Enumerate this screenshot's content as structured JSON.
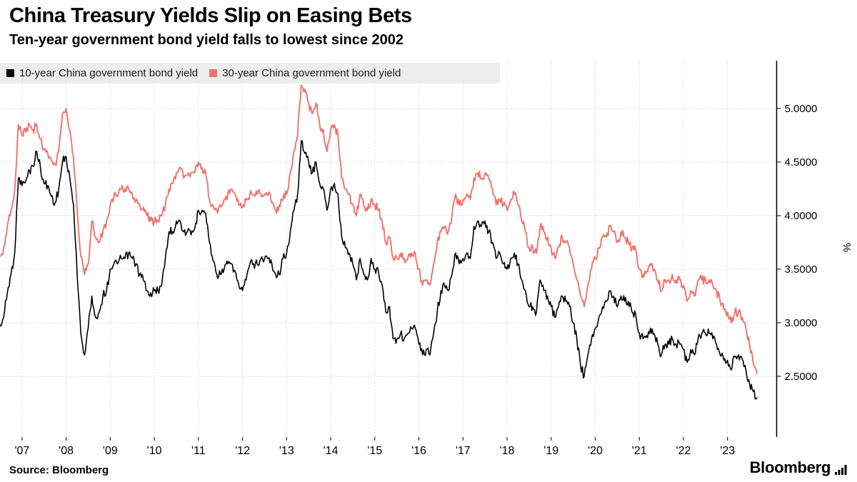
{
  "header": {
    "title": "China Treasury Yields Slip on Easing Bets",
    "subtitle": "Ten-year government bond yield falls to lowest since 2002"
  },
  "legend": {
    "items": [
      {
        "label": "10-year China government bond yield",
        "color": "#000000"
      },
      {
        "label": "30-year China government bond yield",
        "color": "#f0716b"
      }
    ]
  },
  "footer": {
    "source": "Source: Bloomberg",
    "brand": "Bloomberg"
  },
  "chart_data": {
    "type": "line",
    "title": "China Treasury Yields Slip on Easing Bets",
    "subtitle": "Ten-year government bond yield falls to lowest since 2002",
    "xlabel": "",
    "ylabel": "%",
    "grid": "dotted",
    "legend_position": "top-left",
    "y_axis_side": "right",
    "y_ticks": [
      2.5,
      3.0,
      3.5,
      4.0,
      4.5,
      5.0
    ],
    "y_tick_decimals": 4,
    "y_range_visible": [
      1.93,
      5.45
    ],
    "x_range": [
      2007.0,
      2024.25
    ],
    "x_tick_labels": [
      "'07",
      "'08",
      "'09",
      "'10",
      "'11",
      "'12",
      "'13",
      "'14",
      "'15",
      "'16",
      "'17",
      "'18",
      "'19",
      "'20",
      "'21",
      "'22",
      "'23"
    ],
    "x_tick_years": [
      2007.5,
      2008.5,
      2009.5,
      2010.5,
      2011.5,
      2012.5,
      2013.5,
      2014.5,
      2015.5,
      2016.5,
      2017.5,
      2018.5,
      2019.5,
      2020.5,
      2021.5,
      2022.5,
      2023.5
    ],
    "sample_interval": "monthly",
    "series_start": 2007.0,
    "points_per_year": 12,
    "gridline_color": "#c9c9c9",
    "series": [
      {
        "name": "10-year China government bond yield",
        "color": "#000000",
        "values": [
          2.98,
          3.05,
          3.28,
          3.45,
          3.65,
          4.35,
          4.28,
          4.32,
          4.42,
          4.46,
          4.6,
          4.45,
          4.3,
          4.28,
          4.18,
          4.12,
          4.25,
          4.5,
          4.55,
          4.35,
          4.1,
          3.45,
          2.9,
          2.7,
          2.95,
          3.25,
          3.05,
          3.1,
          3.25,
          3.3,
          3.5,
          3.55,
          3.55,
          3.6,
          3.6,
          3.65,
          3.6,
          3.55,
          3.45,
          3.4,
          3.3,
          3.28,
          3.3,
          3.3,
          3.35,
          3.6,
          3.85,
          3.85,
          3.95,
          3.95,
          3.85,
          3.85,
          3.82,
          3.88,
          4.05,
          4.05,
          4.02,
          3.75,
          3.58,
          3.45,
          3.45,
          3.5,
          3.55,
          3.55,
          3.48,
          3.35,
          3.3,
          3.4,
          3.55,
          3.55,
          3.55,
          3.6,
          3.6,
          3.6,
          3.55,
          3.45,
          3.45,
          3.6,
          3.65,
          3.85,
          4.05,
          4.2,
          4.7,
          4.58,
          4.5,
          4.4,
          4.5,
          4.3,
          4.25,
          4.05,
          4.25,
          4.3,
          4.2,
          3.8,
          3.7,
          3.65,
          3.55,
          3.4,
          3.6,
          3.45,
          3.4,
          3.6,
          3.5,
          3.48,
          3.35,
          3.1,
          3.15,
          2.85,
          2.85,
          2.9,
          2.85,
          2.9,
          2.95,
          2.95,
          2.8,
          2.7,
          2.75,
          2.7,
          2.9,
          3.1,
          3.3,
          3.35,
          3.3,
          3.45,
          3.65,
          3.55,
          3.6,
          3.65,
          3.6,
          3.9,
          3.95,
          3.9,
          3.95,
          3.85,
          3.75,
          3.6,
          3.65,
          3.55,
          3.5,
          3.6,
          3.65,
          3.55,
          3.4,
          3.3,
          3.15,
          3.15,
          3.1,
          3.4,
          3.3,
          3.25,
          3.15,
          3.05,
          3.15,
          3.25,
          3.2,
          3.15,
          3.0,
          2.85,
          2.6,
          2.5,
          2.7,
          2.85,
          2.95,
          3.05,
          3.15,
          3.2,
          3.3,
          3.25,
          3.15,
          3.25,
          3.2,
          3.2,
          3.1,
          3.08,
          2.9,
          2.85,
          2.88,
          2.95,
          2.9,
          2.8,
          2.7,
          2.8,
          2.8,
          2.85,
          2.8,
          2.8,
          2.75,
          2.63,
          2.75,
          2.7,
          2.85,
          2.9,
          2.9,
          2.9,
          2.85,
          2.8,
          2.7,
          2.65,
          2.65,
          2.56,
          2.68,
          2.7,
          2.66,
          2.56,
          2.43,
          2.36,
          2.3
        ]
      },
      {
        "name": "30-year China government bond yield",
        "color": "#f0716b",
        "values": [
          3.62,
          3.7,
          3.9,
          4.05,
          4.25,
          4.85,
          4.75,
          4.78,
          4.85,
          4.8,
          4.85,
          4.72,
          4.62,
          4.58,
          4.52,
          4.48,
          4.6,
          4.95,
          5.0,
          4.8,
          4.55,
          4.05,
          3.62,
          3.45,
          3.55,
          3.95,
          3.8,
          3.75,
          3.85,
          3.95,
          4.1,
          4.18,
          4.18,
          4.25,
          4.25,
          4.25,
          4.2,
          4.15,
          4.1,
          4.08,
          4.0,
          3.95,
          3.95,
          3.95,
          4.0,
          4.1,
          4.25,
          4.3,
          4.4,
          4.45,
          4.35,
          4.38,
          4.4,
          4.4,
          4.5,
          4.45,
          4.4,
          4.15,
          4.1,
          4.05,
          4.1,
          4.15,
          4.2,
          4.25,
          4.2,
          4.1,
          4.08,
          4.15,
          4.2,
          4.2,
          4.2,
          4.2,
          4.2,
          4.2,
          4.12,
          4.05,
          4.1,
          4.15,
          4.2,
          4.4,
          4.6,
          4.75,
          5.22,
          5.18,
          5.05,
          4.95,
          5.05,
          4.85,
          4.8,
          4.6,
          4.8,
          4.85,
          4.75,
          4.35,
          4.25,
          4.2,
          4.1,
          4.0,
          4.2,
          4.1,
          4.05,
          4.15,
          4.1,
          4.05,
          3.95,
          3.75,
          3.8,
          3.6,
          3.6,
          3.65,
          3.6,
          3.6,
          3.65,
          3.65,
          3.5,
          3.35,
          3.4,
          3.35,
          3.55,
          3.75,
          3.85,
          3.9,
          3.85,
          4.0,
          4.2,
          4.1,
          4.15,
          4.2,
          4.15,
          4.35,
          4.4,
          4.35,
          4.4,
          4.35,
          4.25,
          4.1,
          4.15,
          4.1,
          4.05,
          4.15,
          4.2,
          4.1,
          3.95,
          3.85,
          3.7,
          3.7,
          3.65,
          3.9,
          3.85,
          3.8,
          3.7,
          3.6,
          3.7,
          3.8,
          3.75,
          3.7,
          3.55,
          3.4,
          3.25,
          3.15,
          3.35,
          3.5,
          3.6,
          3.7,
          3.8,
          3.8,
          3.9,
          3.85,
          3.75,
          3.85,
          3.8,
          3.75,
          3.7,
          3.68,
          3.5,
          3.45,
          3.48,
          3.55,
          3.5,
          3.4,
          3.3,
          3.4,
          3.4,
          3.45,
          3.4,
          3.4,
          3.35,
          3.2,
          3.3,
          3.25,
          3.4,
          3.4,
          3.4,
          3.4,
          3.35,
          3.3,
          3.2,
          3.12,
          3.1,
          3.0,
          3.1,
          3.1,
          3.05,
          2.95,
          2.8,
          2.62,
          2.53
        ]
      }
    ]
  }
}
